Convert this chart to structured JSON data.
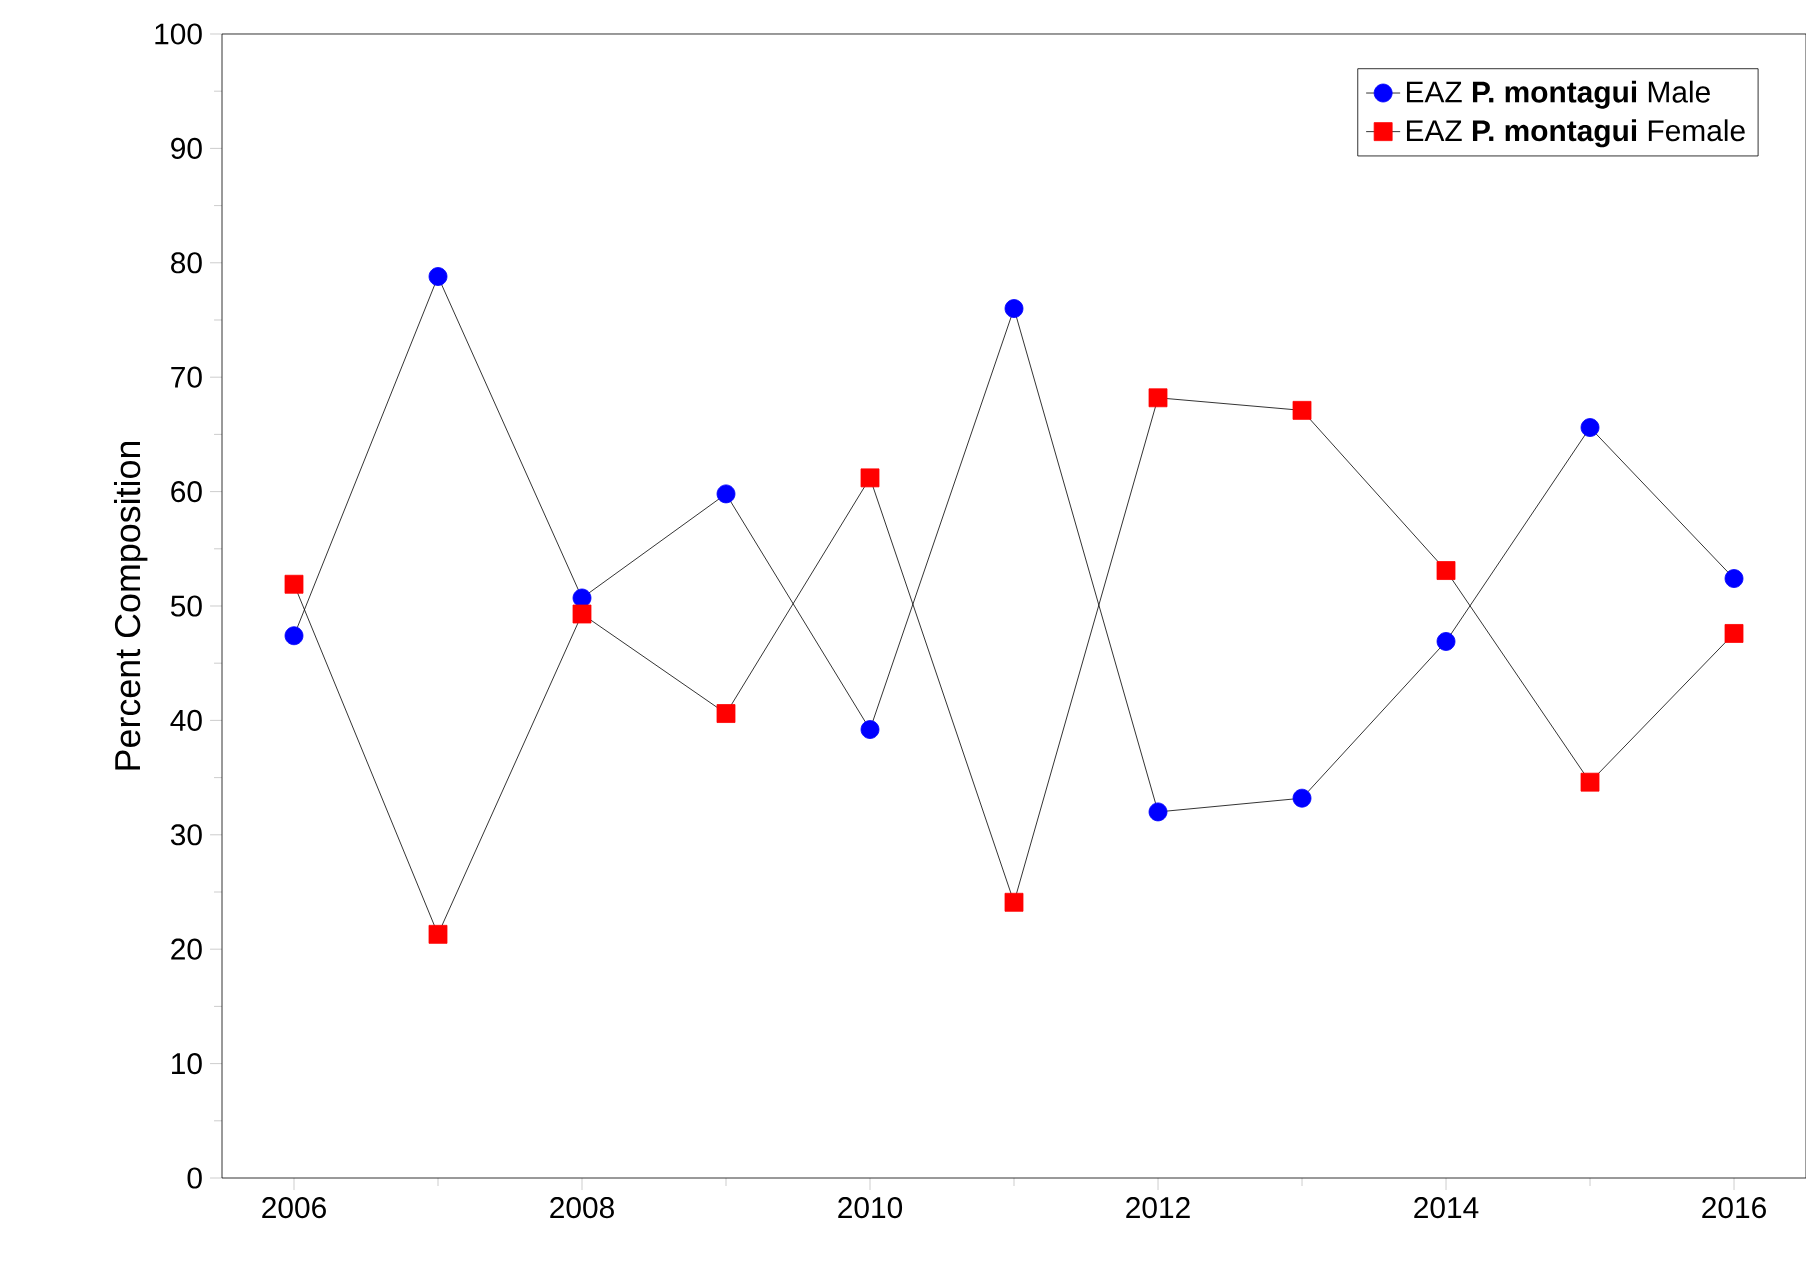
{
  "chart_data": {
    "type": "line",
    "ylabel": "Percent Composition",
    "x": [
      2006,
      2007,
      2008,
      2009,
      2010,
      2011,
      2012,
      2013,
      2014,
      2015,
      2016
    ],
    "series": [
      {
        "name": "EAZ **P. montagui** Male",
        "color": "#0000ff",
        "marker": "circle",
        "values": [
          47.4,
          78.8,
          50.7,
          59.8,
          39.2,
          76.0,
          32.0,
          33.2,
          46.9,
          65.6,
          52.4
        ]
      },
      {
        "name": "EAZ **P. montagui** Female",
        "color": "#ff0000",
        "marker": "square",
        "values": [
          51.9,
          21.3,
          49.3,
          40.6,
          61.2,
          24.1,
          68.2,
          67.1,
          53.1,
          34.6,
          47.6
        ]
      }
    ],
    "xlim": [
      2005.5,
      2016.5
    ],
    "xticks": [
      2006,
      2008,
      2010,
      2012,
      2014,
      2016
    ],
    "ylim": [
      0,
      100
    ],
    "yticks": [
      0,
      10,
      20,
      30,
      40,
      50,
      60,
      70,
      80,
      90,
      100
    ],
    "grid": false,
    "legend": "top right",
    "line_style": "solid"
  }
}
